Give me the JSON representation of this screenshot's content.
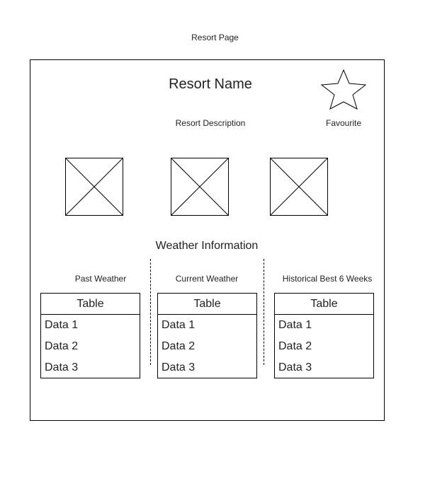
{
  "page": {
    "label": "Resort Page"
  },
  "header": {
    "resort_name": "Resort Name",
    "favourite_label": "Favourite",
    "favourite_icon": "star-icon"
  },
  "resort": {
    "description": "Resort Description",
    "images": [
      "image-placeholder",
      "image-placeholder",
      "image-placeholder"
    ]
  },
  "weather": {
    "heading": "Weather Information",
    "sections": [
      {
        "title": "Past Weather",
        "table": {
          "header": "Table",
          "rows": [
            "Data 1",
            "Data 2",
            "Data 3"
          ]
        }
      },
      {
        "title": "Current Weather",
        "table": {
          "header": "Table",
          "rows": [
            "Data 1",
            "Data 2",
            "Data 3"
          ]
        }
      },
      {
        "title": "Historical Best 6 Weeks",
        "table": {
          "header": "Table",
          "rows": [
            "Data 1",
            "Data 2",
            "Data 3"
          ]
        }
      }
    ]
  },
  "colors": {
    "stroke": "#000000",
    "text": "#222222",
    "background": "#ffffff"
  }
}
